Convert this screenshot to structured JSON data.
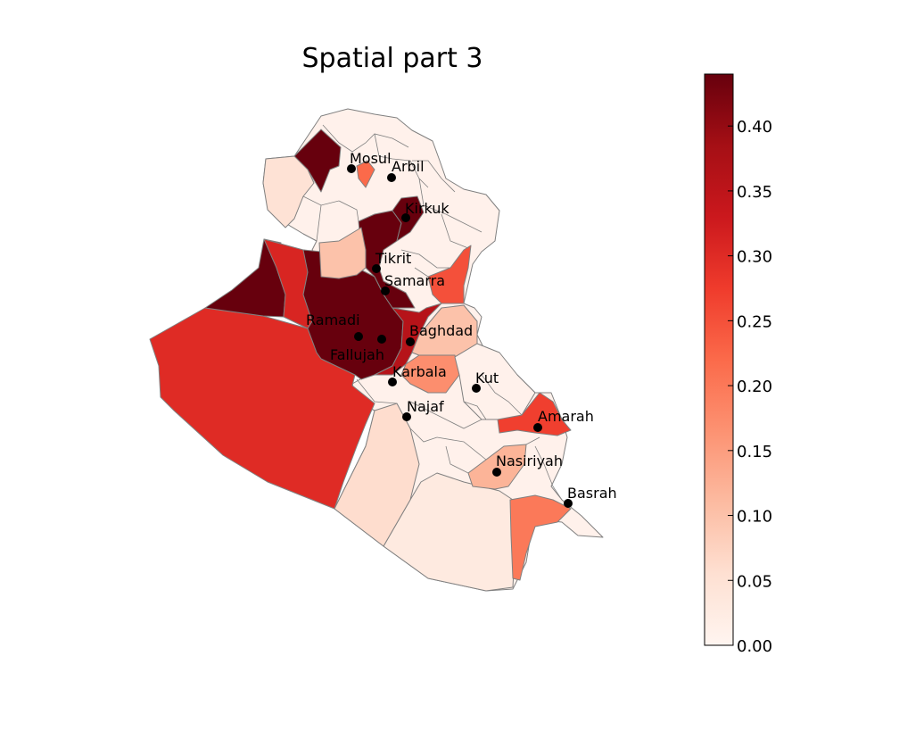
{
  "title": "Spatial part 3",
  "colorbar": {
    "colormap": "Reds",
    "min": 0.0,
    "max": 0.44,
    "ticks": [
      "0.00",
      "0.05",
      "0.10",
      "0.15",
      "0.20",
      "0.25",
      "0.30",
      "0.35",
      "0.40"
    ],
    "tick_values": [
      0.0,
      0.05,
      0.1,
      0.15,
      0.2,
      0.25,
      0.3,
      0.35,
      0.4
    ]
  },
  "colors": {
    "region_edge": "#808080",
    "city_marker": "#000000"
  },
  "cities": [
    {
      "name": "Mosul"
    },
    {
      "name": "Arbil"
    },
    {
      "name": "Kirkuk"
    },
    {
      "name": "Tikrit"
    },
    {
      "name": "Samarra"
    },
    {
      "name": "Ramadi"
    },
    {
      "name": "Fallujah"
    },
    {
      "name": "Baghdad"
    },
    {
      "name": "Karbala"
    },
    {
      "name": "Kut"
    },
    {
      "name": "Najaf"
    },
    {
      "name": "Amarah"
    },
    {
      "name": "Nasiriyah"
    },
    {
      "name": "Basrah"
    }
  ],
  "regions": [
    {
      "id": "anbar-west",
      "value": 0.3
    },
    {
      "id": "anbar-northwest",
      "value": 0.44
    },
    {
      "id": "anbar-east-strip",
      "value": 0.31
    },
    {
      "id": "ramadi-core",
      "value": 0.44
    },
    {
      "id": "samarra-tikrit-corridor",
      "value": 0.44
    },
    {
      "id": "kirkuk-district",
      "value": 0.44
    },
    {
      "id": "sinjar",
      "value": 0.44
    },
    {
      "id": "mosul-east",
      "value": 0.22
    },
    {
      "id": "salahaddin-west",
      "value": 0.1
    },
    {
      "id": "diyala-east",
      "value": 0.25
    },
    {
      "id": "baghdad-south-belt",
      "value": 0.36
    },
    {
      "id": "karbala-east",
      "value": 0.17
    },
    {
      "id": "wasit-north",
      "value": 0.1
    },
    {
      "id": "maysan-amarah",
      "value": 0.27
    },
    {
      "id": "dhi-qar-south",
      "value": 0.12
    },
    {
      "id": "basrah-west",
      "value": 0.2
    },
    {
      "id": "najaf-desert",
      "value": 0.06
    },
    {
      "id": "muthanna-desert",
      "value": 0.03
    },
    {
      "id": "ninewa-west",
      "value": 0.05
    },
    {
      "id": "north-generic",
      "value": 0.01
    },
    {
      "id": "south-generic",
      "value": 0.01
    }
  ]
}
